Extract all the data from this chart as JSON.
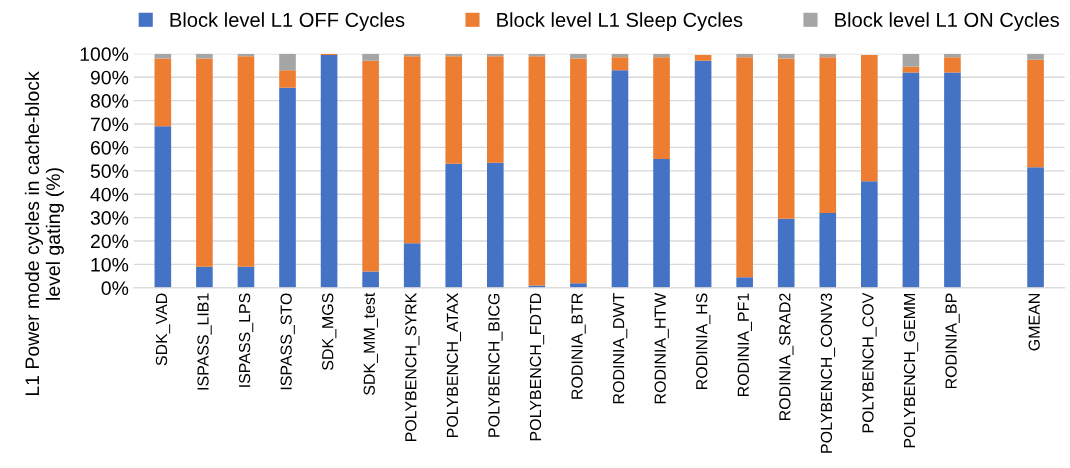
{
  "chart_data": {
    "type": "bar",
    "stacked": true,
    "ylabel": "L1 Power mode cycles in cache-block\nlevel gating (%)",
    "categories": [
      "SDK_VAD",
      "ISPASS_LIB1",
      "ISPASS_LPS",
      "ISPASS_STO",
      "SDK_MGS",
      "SDK_MM_test",
      "POLYBENCH_SYRK",
      "POLYBENCH_ATAX",
      "POLYBENCH_BICG",
      "POLYBENCH_FDTD",
      "RODINIA_BTR",
      "RODINIA_DWT",
      "RODINIA_HTW",
      "RODINIA_HS",
      "RODINIA_PF1",
      "RODINIA_SRAD2",
      "POLYBENCH_CONV3",
      "POLYBENCH_COV",
      "POLYBENCH_GEMM",
      "RODINIA_BP",
      null,
      "GMEAN"
    ],
    "series": [
      {
        "name": "Block level L1 OFF Cycles",
        "color": "#4472c4",
        "values": [
          69,
          9,
          9,
          85.5,
          99.5,
          7,
          19,
          53,
          53.5,
          1,
          2,
          93,
          55,
          97,
          4.5,
          29.5,
          32,
          45.5,
          92,
          92,
          null,
          51.5
        ]
      },
      {
        "name": "Block level L1 Sleep Cycles",
        "color": "#ed7d31",
        "values": [
          29,
          89,
          90,
          7.5,
          0.5,
          90,
          80,
          46,
          45.5,
          98,
          96,
          5.5,
          43.5,
          2.5,
          94,
          68.5,
          66.5,
          54,
          2.5,
          6.5,
          null,
          46
        ]
      },
      {
        "name": "Block level L1 ON Cycles",
        "color": "#a5a5a5",
        "values": [
          2,
          2,
          1,
          7,
          null,
          3,
          1,
          1,
          1,
          1,
          2,
          1.5,
          1.5,
          null,
          1.5,
          2,
          1.5,
          null,
          5.5,
          1.5,
          null,
          2.5
        ]
      }
    ],
    "ylim": [
      0,
      100
    ],
    "yticks": [
      {
        "value": 0,
        "label": "0%"
      },
      {
        "value": 10,
        "label": "10%"
      },
      {
        "value": 20,
        "label": "20%"
      },
      {
        "value": 30,
        "label": "30%"
      },
      {
        "value": 40,
        "label": "40%"
      },
      {
        "value": 50,
        "label": "50%"
      },
      {
        "value": 60,
        "label": "60%"
      },
      {
        "value": 70,
        "label": "70%"
      },
      {
        "value": 80,
        "label": "80%"
      },
      {
        "value": 90,
        "label": "90%"
      },
      {
        "value": 100,
        "label": "100%"
      }
    ],
    "grid": "y",
    "legend": "top"
  }
}
